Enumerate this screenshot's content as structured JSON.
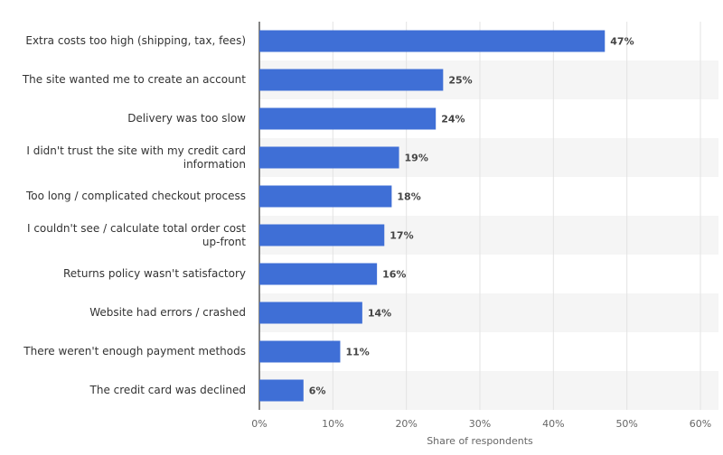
{
  "chart_data": {
    "type": "bar",
    "orientation": "horizontal",
    "x_label": "Share of respondents",
    "categories": [
      "Extra costs too high (shipping, tax, fees)",
      "The site wanted me to create an account",
      "Delivery was too slow",
      "I didn't trust the site with my credit card information",
      "Too long / complicated checkout process",
      "I couldn't see / calculate total order cost up-front",
      "Returns policy wasn't satisfactory",
      "Website had errors / crashed",
      "There weren't enough payment methods",
      "The credit card was declined"
    ],
    "values": [
      47,
      25,
      24,
      19,
      18,
      17,
      16,
      14,
      11,
      6
    ],
    "value_labels": [
      "47%",
      "25%",
      "24%",
      "19%",
      "18%",
      "17%",
      "16%",
      "14%",
      "11%",
      "6%"
    ],
    "color": "#3f6fd6",
    "xlim": [
      0,
      60
    ],
    "xticks": [
      {
        "value": 0,
        "label": "0%"
      },
      {
        "value": 10,
        "label": "10%"
      },
      {
        "value": 20,
        "label": "20%"
      },
      {
        "value": 30,
        "label": "30%"
      },
      {
        "value": 40,
        "label": "40%"
      },
      {
        "value": 50,
        "label": "50%"
      },
      {
        "value": 60,
        "label": "60%"
      }
    ],
    "grid": true
  }
}
